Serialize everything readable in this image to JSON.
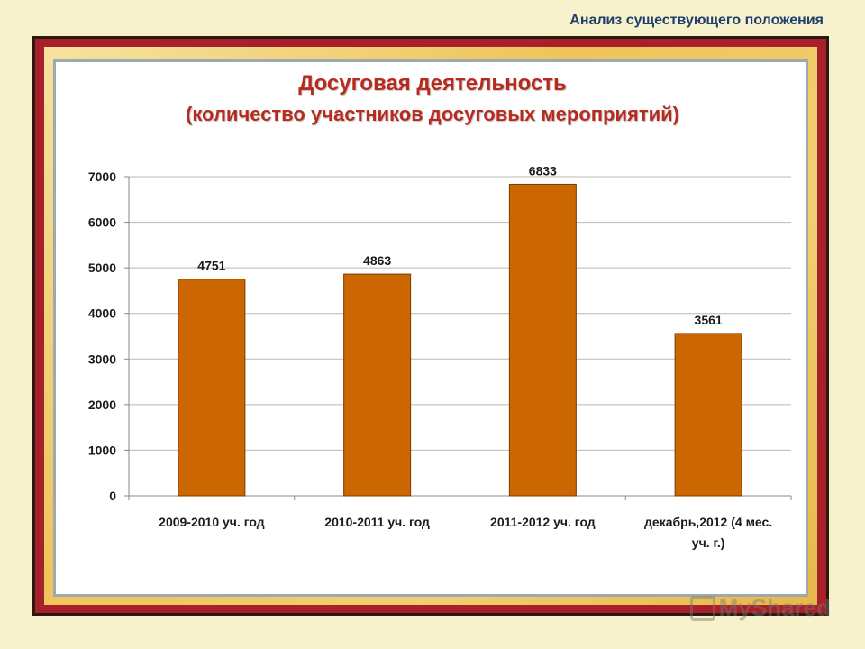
{
  "header": {
    "section_title": "Анализ существующего положения"
  },
  "watermark": {
    "text": "MyShared",
    "icon": "presenter-icon"
  },
  "chart_data": {
    "type": "bar",
    "title": "Досуговая деятельность",
    "subtitle": "(количество участников досуговых мероприятий)",
    "categories": [
      [
        "2009-2010 уч. год"
      ],
      [
        "2010-2011 уч. год"
      ],
      [
        "2011-2012 уч. год"
      ],
      [
        "декабрь,2012  (4 мес.",
        "уч. г.)"
      ]
    ],
    "values": [
      4751,
      4863,
      6833,
      3561
    ],
    "ylim": [
      0,
      7000
    ],
    "yticks": [
      0,
      1000,
      2000,
      3000,
      4000,
      5000,
      6000,
      7000
    ],
    "bar_color": "#cc6600",
    "grid": true,
    "legend": "none"
  }
}
